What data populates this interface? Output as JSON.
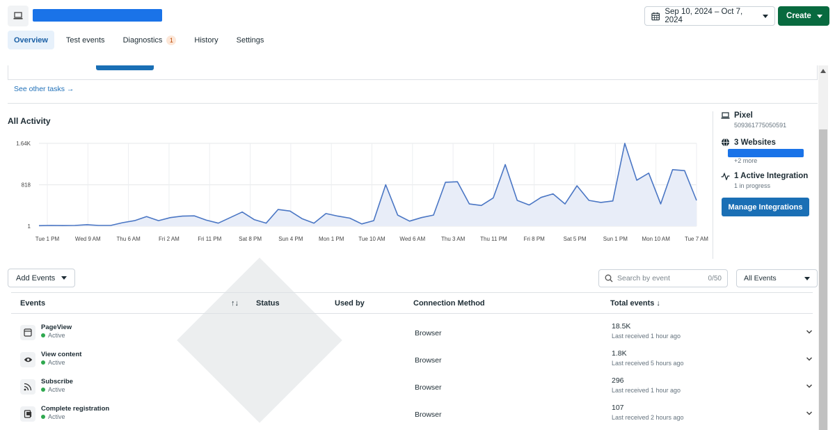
{
  "header": {
    "date_range": "Sep 10, 2024 – Oct 7, 2024",
    "create_label": "Create"
  },
  "tabs": [
    {
      "label": "Overview",
      "active": true
    },
    {
      "label": "Test events"
    },
    {
      "label": "Diagnostics",
      "badge": "1"
    },
    {
      "label": "History"
    },
    {
      "label": "Settings"
    }
  ],
  "tasks": {
    "see_other_label": "See other tasks →"
  },
  "activity": {
    "title": "All Activity"
  },
  "chart_data": {
    "type": "area",
    "y_ticks": [
      "1.64K",
      "818",
      "1"
    ],
    "ylim": [
      1,
      1640
    ],
    "x_tick_labels": [
      "Tue 1 PM",
      "Wed 9 AM",
      "Thu 6 AM",
      "Fri 2 AM",
      "Fri 11 PM",
      "Sat 8 PM",
      "Sun 4 PM",
      "Mon 1 PM",
      "Tue 10 AM",
      "Wed 6 AM",
      "Thu 3 AM",
      "Thu 11 PM",
      "Fri 8 PM",
      "Sat 5 PM",
      "Sun 1 PM",
      "Mon 10 AM",
      "Tue 7 AM"
    ],
    "values": [
      10,
      15,
      12,
      15,
      30,
      15,
      15,
      70,
      110,
      190,
      110,
      170,
      200,
      205,
      120,
      60,
      170,
      280,
      130,
      60,
      330,
      300,
      150,
      60,
      250,
      200,
      160,
      45,
      110,
      820,
      220,
      100,
      170,
      220,
      870,
      880,
      440,
      410,
      560,
      1220,
      510,
      420,
      570,
      640,
      440,
      800,
      510,
      470,
      500,
      1640,
      910,
      1050,
      440,
      1120,
      1100,
      510
    ],
    "grid": true,
    "line_color": "#4a76c4",
    "fill_color": "#e8edf8"
  },
  "side": {
    "pixel_label": "Pixel",
    "pixel_id": "509361775050591",
    "websites_label": "3 Websites",
    "websites_more": "+2 more",
    "integration_label": "1 Active Integration",
    "integration_status": "1 in progress",
    "manage_label": "Manage Integrations"
  },
  "controls": {
    "add_events_label": "Add Events",
    "search_placeholder": "Search by event",
    "search_count": "0/50",
    "filter_label": "All Events"
  },
  "table": {
    "headers": {
      "events": "Events",
      "sort": "↑↓",
      "status": "Status",
      "used_by": "Used by",
      "connection": "Connection Method",
      "total": "Total events ↓"
    },
    "rows": [
      {
        "name": "PageView",
        "status": "Active",
        "method": "Browser",
        "total": "18.5K",
        "last": "Last received 1 hour ago",
        "icon": "page-icon"
      },
      {
        "name": "View content",
        "status": "Active",
        "method": "Browser",
        "total": "1.8K",
        "last": "Last received 5 hours ago",
        "icon": "eye-icon"
      },
      {
        "name": "Subscribe",
        "status": "Active",
        "method": "Browser",
        "total": "296",
        "last": "Last received 1 hour ago",
        "icon": "rss-icon"
      },
      {
        "name": "Complete registration",
        "status": "Active",
        "method": "Browser",
        "total": "107",
        "last": "Last received 2 hours ago",
        "icon": "clipboard-icon"
      }
    ]
  }
}
